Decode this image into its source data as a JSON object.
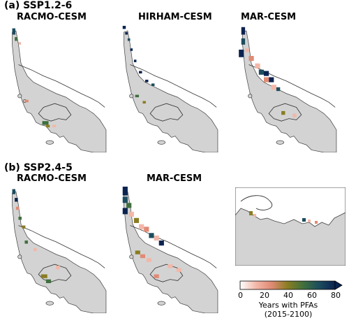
{
  "panels": {
    "a_label": "(a) SSP1.2-6",
    "b_label": "(b) SSP2.4-5",
    "a_titles": [
      "RACMO-CESM",
      "HIRHAM-CESM",
      "MAR-CESM"
    ],
    "b_titles": [
      "RACMO-CESM",
      "MAR-CESM"
    ]
  },
  "colorbar": {
    "label_line1": "Years with PFAs",
    "label_line2": "(2015-2100)",
    "ticks": [
      "0",
      "20",
      "40",
      "60",
      "80"
    ],
    "colors": [
      "#ffffff",
      "#f3b7a8",
      "#e08a74",
      "#8a7d22",
      "#3f6f3e",
      "#1c4d5e",
      "#0b2350"
    ]
  }
}
